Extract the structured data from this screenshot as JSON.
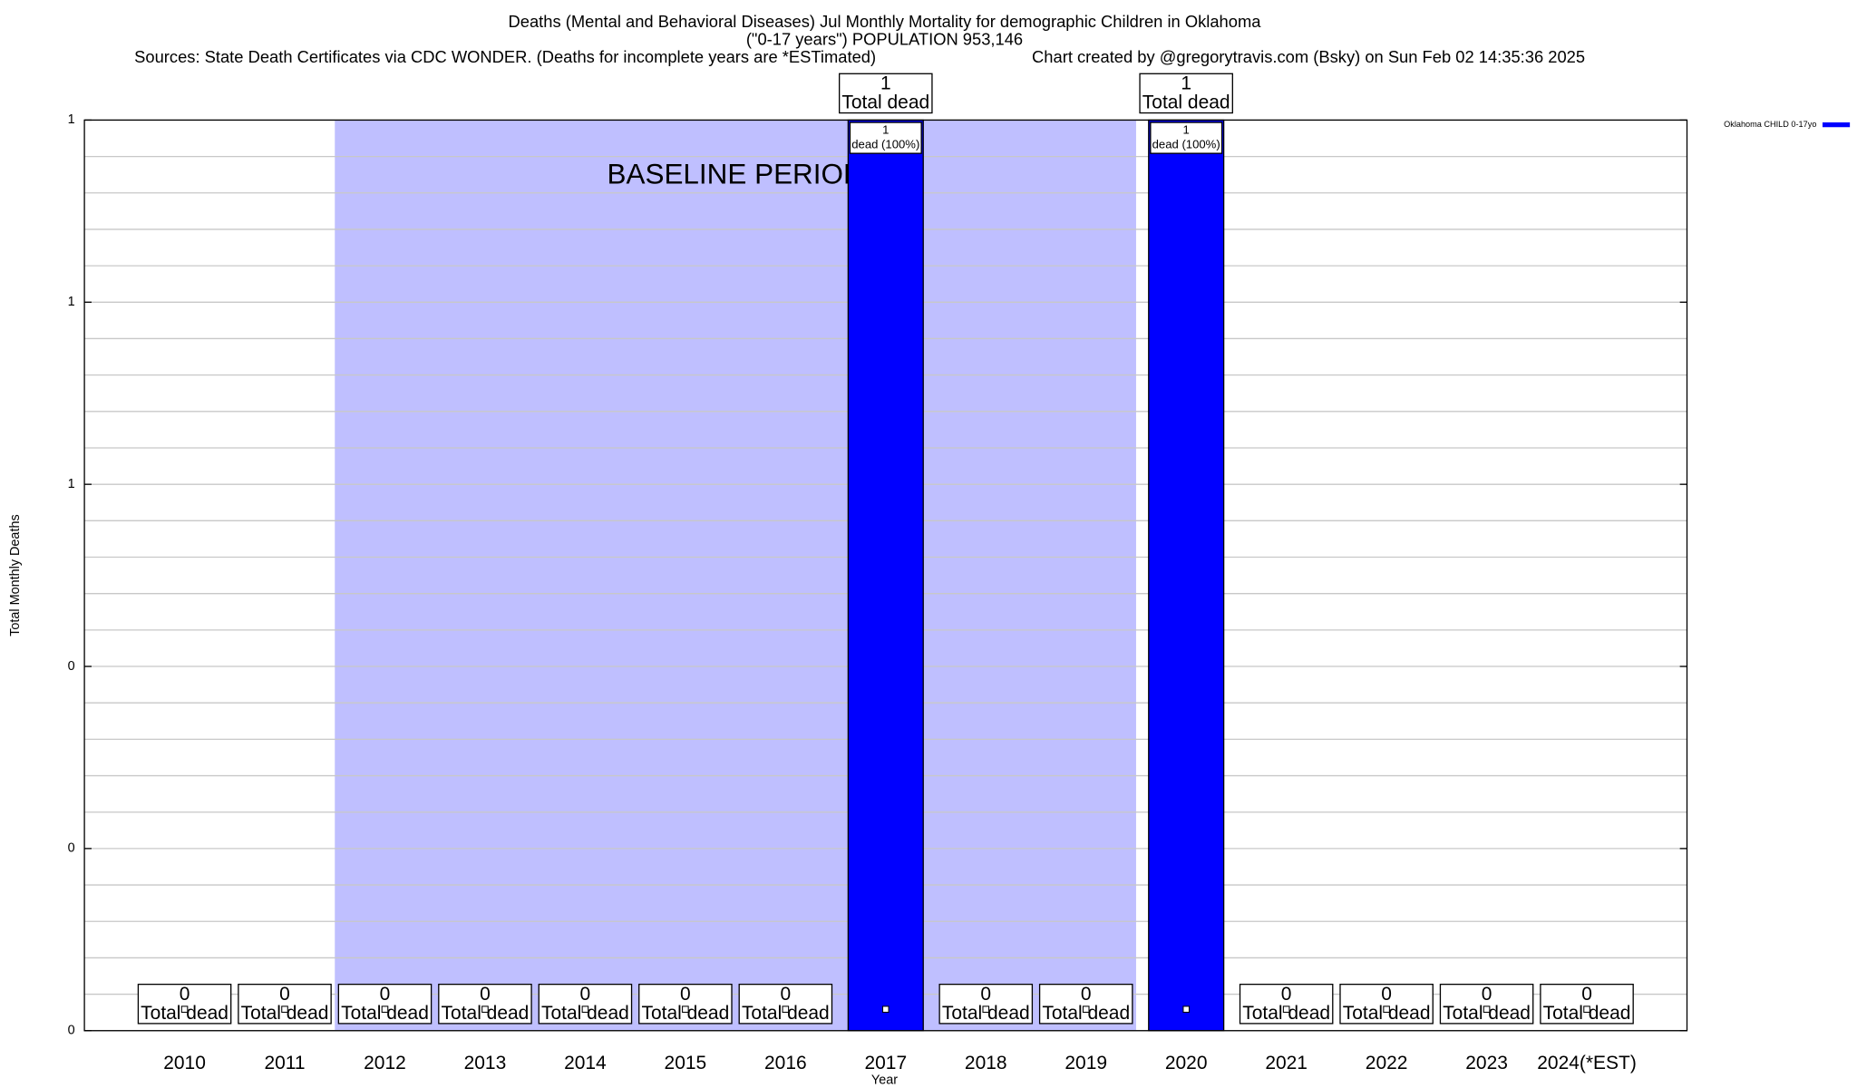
{
  "chart_data": {
    "type": "bar",
    "title": [
      "Deaths (Mental and Behavioral Diseases) Jul Monthly Mortality for demographic Children in Oklahoma",
      "(\"0-17 years\") POPULATION 953,146"
    ],
    "subtitle": [
      "Sources: State Death Certificates via CDC WONDER. (Deaths for incomplete years are *ESTimated)",
      "Chart created by @gregorytravis.com (Bsky) on Sun Feb 02 14:35:36 2025"
    ],
    "x_label": "Year",
    "y_label": "Total Monthly Deaths",
    "categories": [
      "2010",
      "2011",
      "2012",
      "2013",
      "2014",
      "2015",
      "2016",
      "2017",
      "2018",
      "2019",
      "2020",
      "2021",
      "2022",
      "2023",
      "2024(*EST)"
    ],
    "series": [
      {
        "name": "Oklahoma CHILD 0-17yo",
        "color": "#0000ff",
        "values": [
          0,
          0,
          0,
          0,
          0,
          0,
          0,
          1,
          0,
          0,
          1,
          0,
          0,
          0,
          0
        ]
      }
    ],
    "total_label": "Total dead",
    "inner_labels": [
      null,
      null,
      null,
      null,
      null,
      null,
      null,
      "dead (100%)",
      null,
      null,
      "dead (100%)",
      null,
      null,
      null,
      null
    ],
    "baseline": {
      "label": "BASELINE PERIOD",
      "start": "2012",
      "end": "2019",
      "color": "#bfbfff"
    },
    "ylim": [
      0,
      1
    ],
    "yticks": [
      0,
      {
        "value": 0.2,
        "label": "0"
      },
      {
        "value": 0.4,
        "label": "0"
      },
      {
        "value": 0.6,
        "label": "1"
      },
      {
        "value": 0.8,
        "label": "1"
      },
      1
    ],
    "minor_grid_divisions": 5,
    "grid": true,
    "legend": "top-right"
  }
}
